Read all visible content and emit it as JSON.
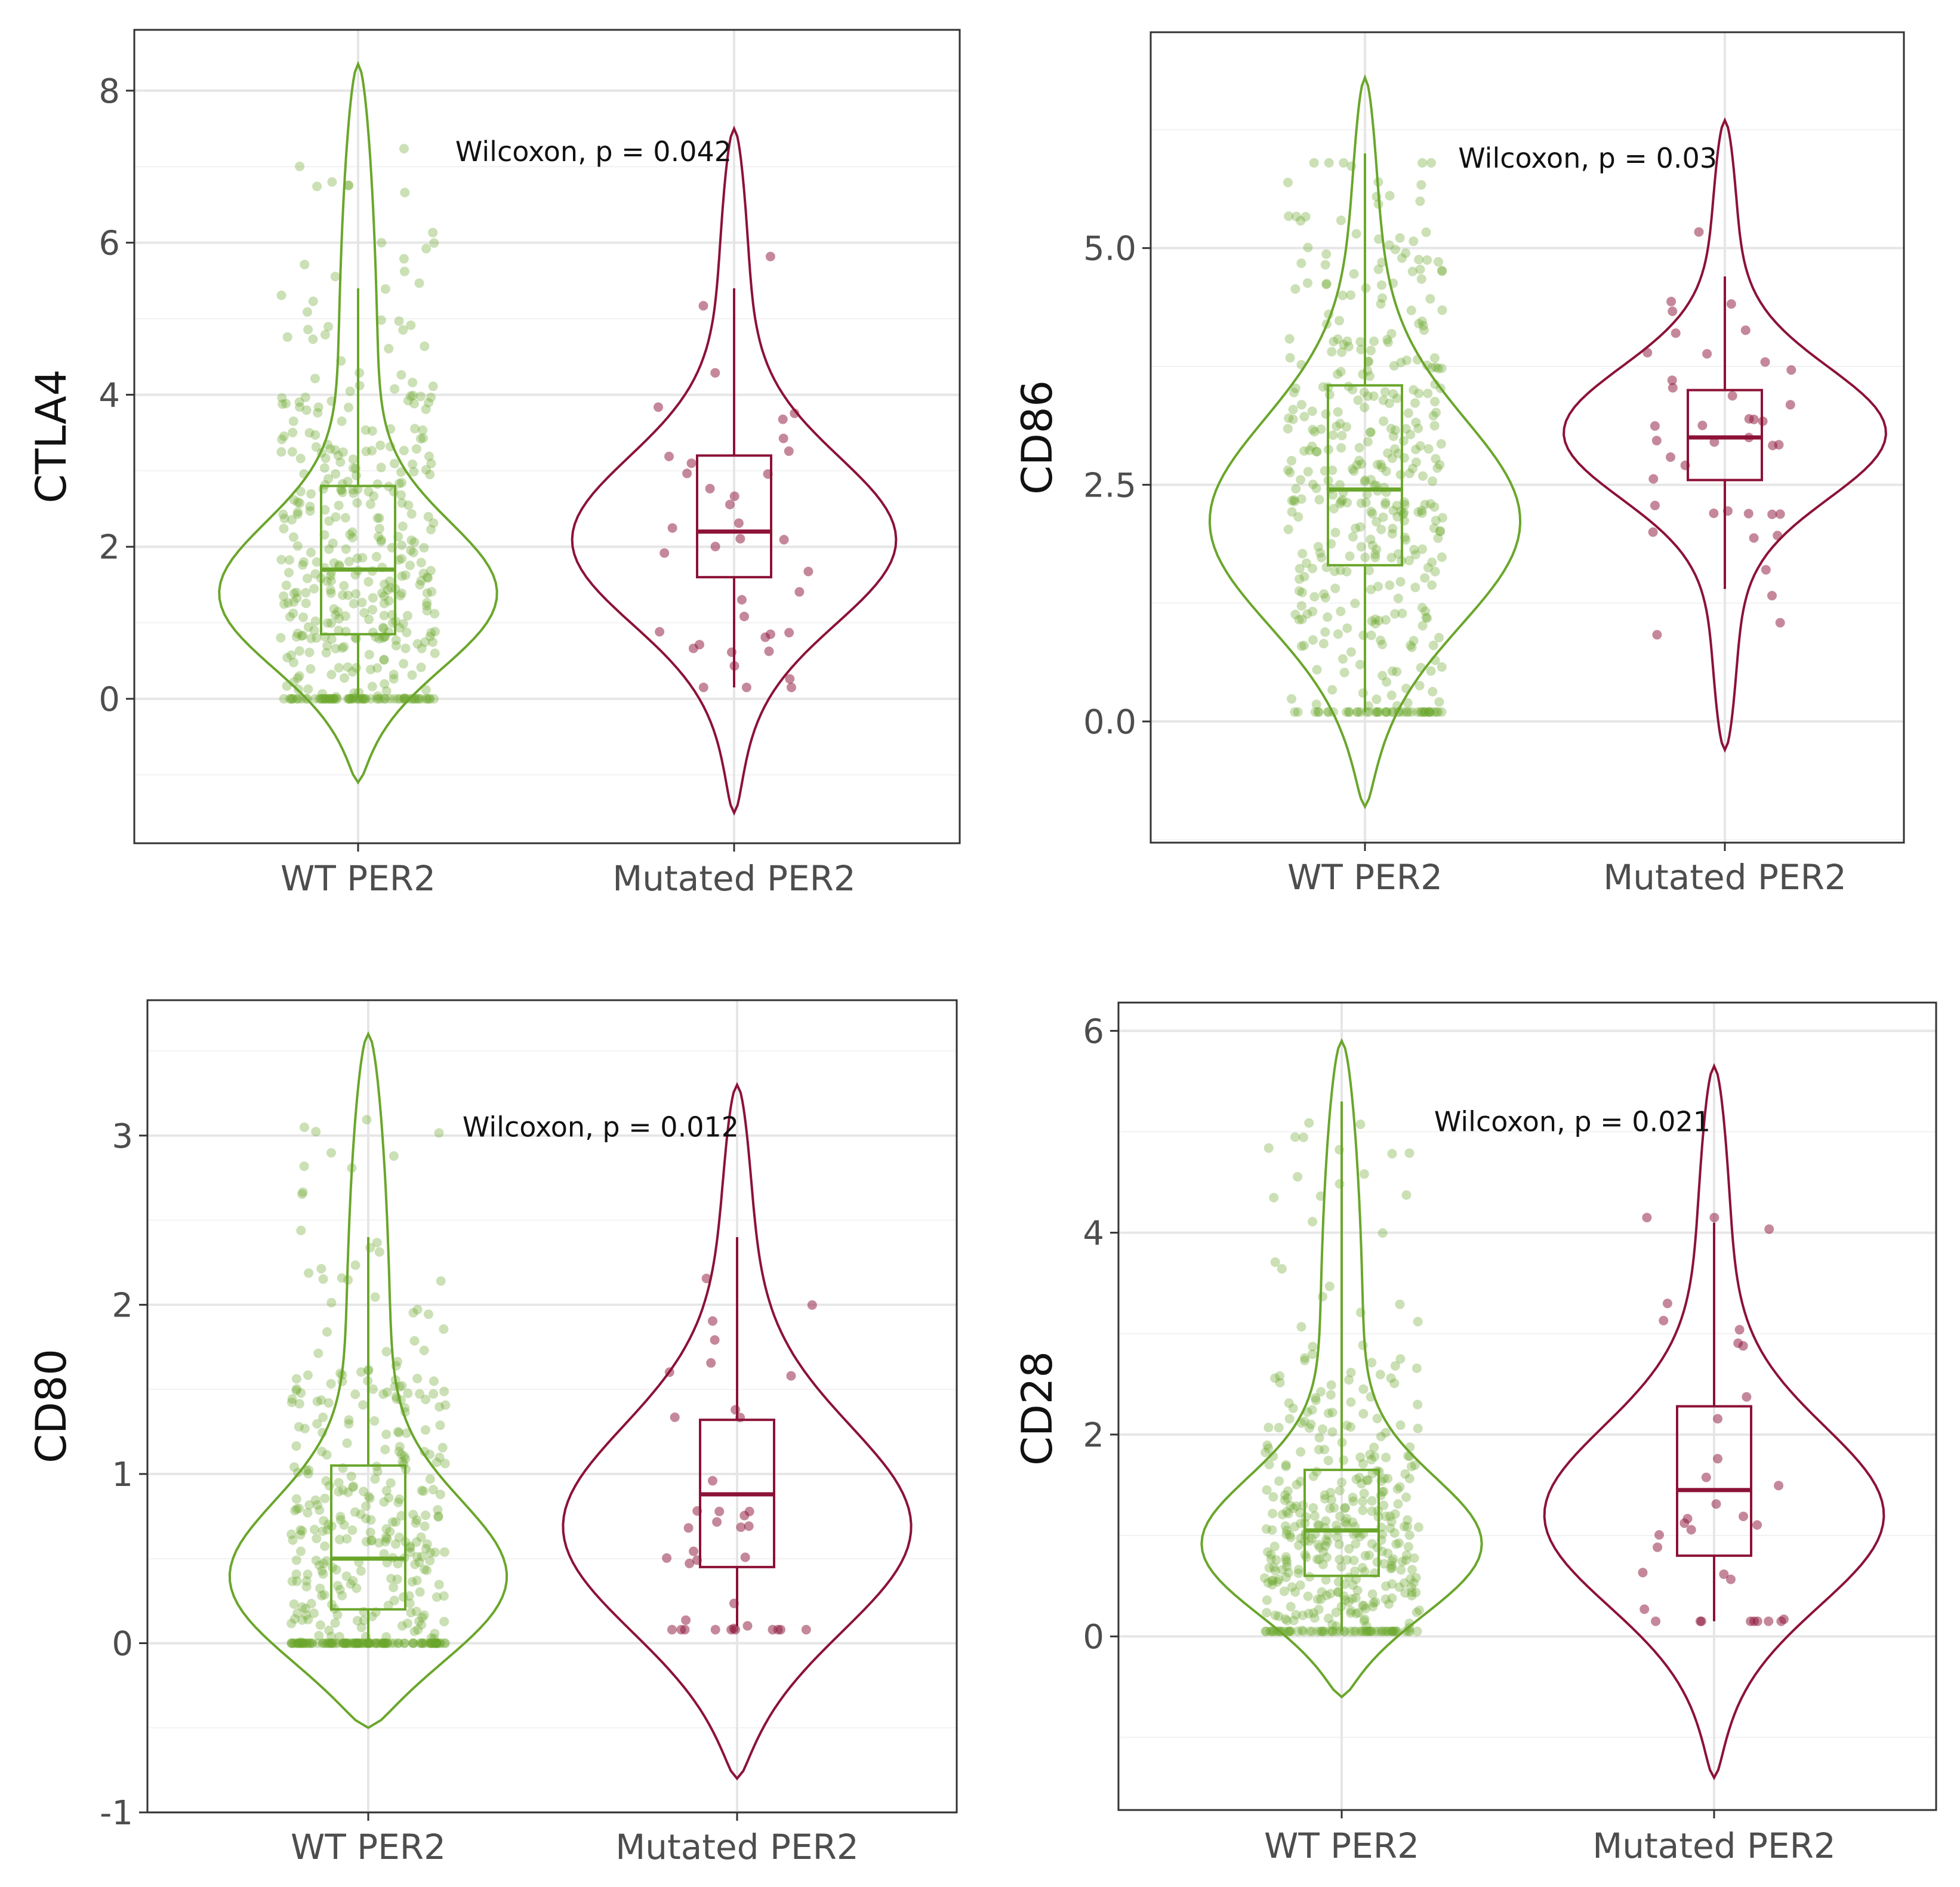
{
  "colors": {
    "wt": "#6aa62b",
    "mut": "#8c1237",
    "grid_major": "#e6e6e6",
    "grid_minor": "#f2f2f2",
    "frame": "#333333"
  },
  "chart_data": [
    {
      "type": "violin",
      "ylabel": "CTLA4",
      "categories": [
        "WT PER2",
        "Mutated PER2"
      ],
      "ylim": [
        -1.9,
        8.8
      ],
      "yticks": [
        0,
        2,
        4,
        6,
        8
      ],
      "ytick_labels": [
        "0",
        "2",
        "4",
        "6",
        "8"
      ],
      "annotation": "Wilcoxon, p = 0.042",
      "annotation_y": 7.2,
      "groups": [
        {
          "name": "WT PER2",
          "n_points": 420,
          "violin_min": -1.1,
          "violin_max": 8.35,
          "mode": 1.2,
          "bandwidth": 1.4,
          "box": {
            "whisker_low": 0.0,
            "q1": 0.85,
            "median": 1.7,
            "q3": 2.8,
            "whisker_high": 5.4
          },
          "points_range": [
            0.0,
            7.3
          ]
        },
        {
          "name": "Mutated PER2",
          "n_points": 38,
          "violin_min": -1.5,
          "violin_max": 7.5,
          "mode": 2.0,
          "bandwidth": 1.6,
          "box": {
            "whisker_low": 0.15,
            "q1": 1.6,
            "median": 2.2,
            "q3": 3.2,
            "whisker_high": 5.4
          },
          "points_range": [
            0.15,
            5.9
          ]
        }
      ]
    },
    {
      "type": "violin",
      "ylabel": "CD86",
      "categories": [
        "WT PER2",
        "Mutated PER2"
      ],
      "ylim": [
        -1.28,
        7.28
      ],
      "yticks": [
        0.0,
        2.5,
        5.0
      ],
      "ytick_labels": [
        "0.0",
        "2.5",
        "5.0"
      ],
      "annotation": "Wilcoxon, p = 0.03",
      "annotation_y": 5.95,
      "groups": [
        {
          "name": "WT PER2",
          "n_points": 420,
          "violin_min": -0.9,
          "violin_max": 6.8,
          "mode": 2.0,
          "bandwidth": 1.6,
          "box": {
            "whisker_low": 0.1,
            "q1": 1.65,
            "median": 2.45,
            "q3": 3.55,
            "whisker_high": 6.0
          },
          "points_range": [
            0.1,
            5.9
          ]
        },
        {
          "name": "Mutated PER2",
          "n_points": 40,
          "violin_min": -0.3,
          "violin_max": 6.35,
          "mode": 3.05,
          "bandwidth": 1.0,
          "box": {
            "whisker_low": 1.4,
            "q1": 2.55,
            "median": 3.0,
            "q3": 3.5,
            "whisker_high": 4.7
          },
          "points_range": [
            0.7,
            5.3
          ]
        }
      ]
    },
    {
      "type": "violin",
      "ylabel": "CD80",
      "categories": [
        "WT PER2",
        "Mutated PER2"
      ],
      "ylim": [
        -1.0,
        3.8
      ],
      "yticks": [
        -1,
        0,
        1,
        2,
        3
      ],
      "ytick_labels": [
        "-1",
        "0",
        "1",
        "2",
        "3"
      ],
      "annotation": "Wilcoxon, p = 0.012",
      "annotation_y": 3.05,
      "groups": [
        {
          "name": "WT PER2",
          "n_points": 420,
          "violin_min": -0.5,
          "violin_max": 3.6,
          "mode": 0.25,
          "bandwidth": 0.7,
          "box": {
            "whisker_low": 0.0,
            "q1": 0.2,
            "median": 0.5,
            "q3": 1.05,
            "whisker_high": 2.4
          },
          "points_range": [
            0.0,
            3.1
          ]
        },
        {
          "name": "Mutated PER2",
          "n_points": 38,
          "violin_min": -0.8,
          "violin_max": 3.3,
          "mode": 0.6,
          "bandwidth": 0.9,
          "box": {
            "whisker_low": 0.1,
            "q1": 0.45,
            "median": 0.88,
            "q3": 1.32,
            "whisker_high": 2.4
          },
          "points_range": [
            0.08,
            2.4
          ]
        }
      ]
    },
    {
      "type": "violin",
      "ylabel": "CD28",
      "categories": [
        "WT PER2",
        "Mutated PER2"
      ],
      "ylim": [
        -1.72,
        6.28
      ],
      "yticks": [
        0,
        2,
        4,
        6
      ],
      "ytick_labels": [
        "0",
        "2",
        "4",
        "6"
      ],
      "annotation": "Wilcoxon, p = 0.021",
      "annotation_y": 5.1,
      "groups": [
        {
          "name": "WT PER2",
          "n_points": 420,
          "violin_min": -0.6,
          "violin_max": 5.9,
          "mode": 0.75,
          "bandwidth": 1.0,
          "box": {
            "whisker_low": 0.05,
            "q1": 0.6,
            "median": 1.05,
            "q3": 1.65,
            "whisker_high": 5.3
          },
          "points_range": [
            0.05,
            5.3
          ]
        },
        {
          "name": "Mutated PER2",
          "n_points": 34,
          "violin_min": -1.4,
          "violin_max": 5.65,
          "mode": 1.1,
          "bandwidth": 1.3,
          "box": {
            "whisker_low": 0.15,
            "q1": 0.8,
            "median": 1.45,
            "q3": 2.28,
            "whisker_high": 4.1
          },
          "points_range": [
            0.15,
            4.15
          ]
        }
      ]
    }
  ]
}
